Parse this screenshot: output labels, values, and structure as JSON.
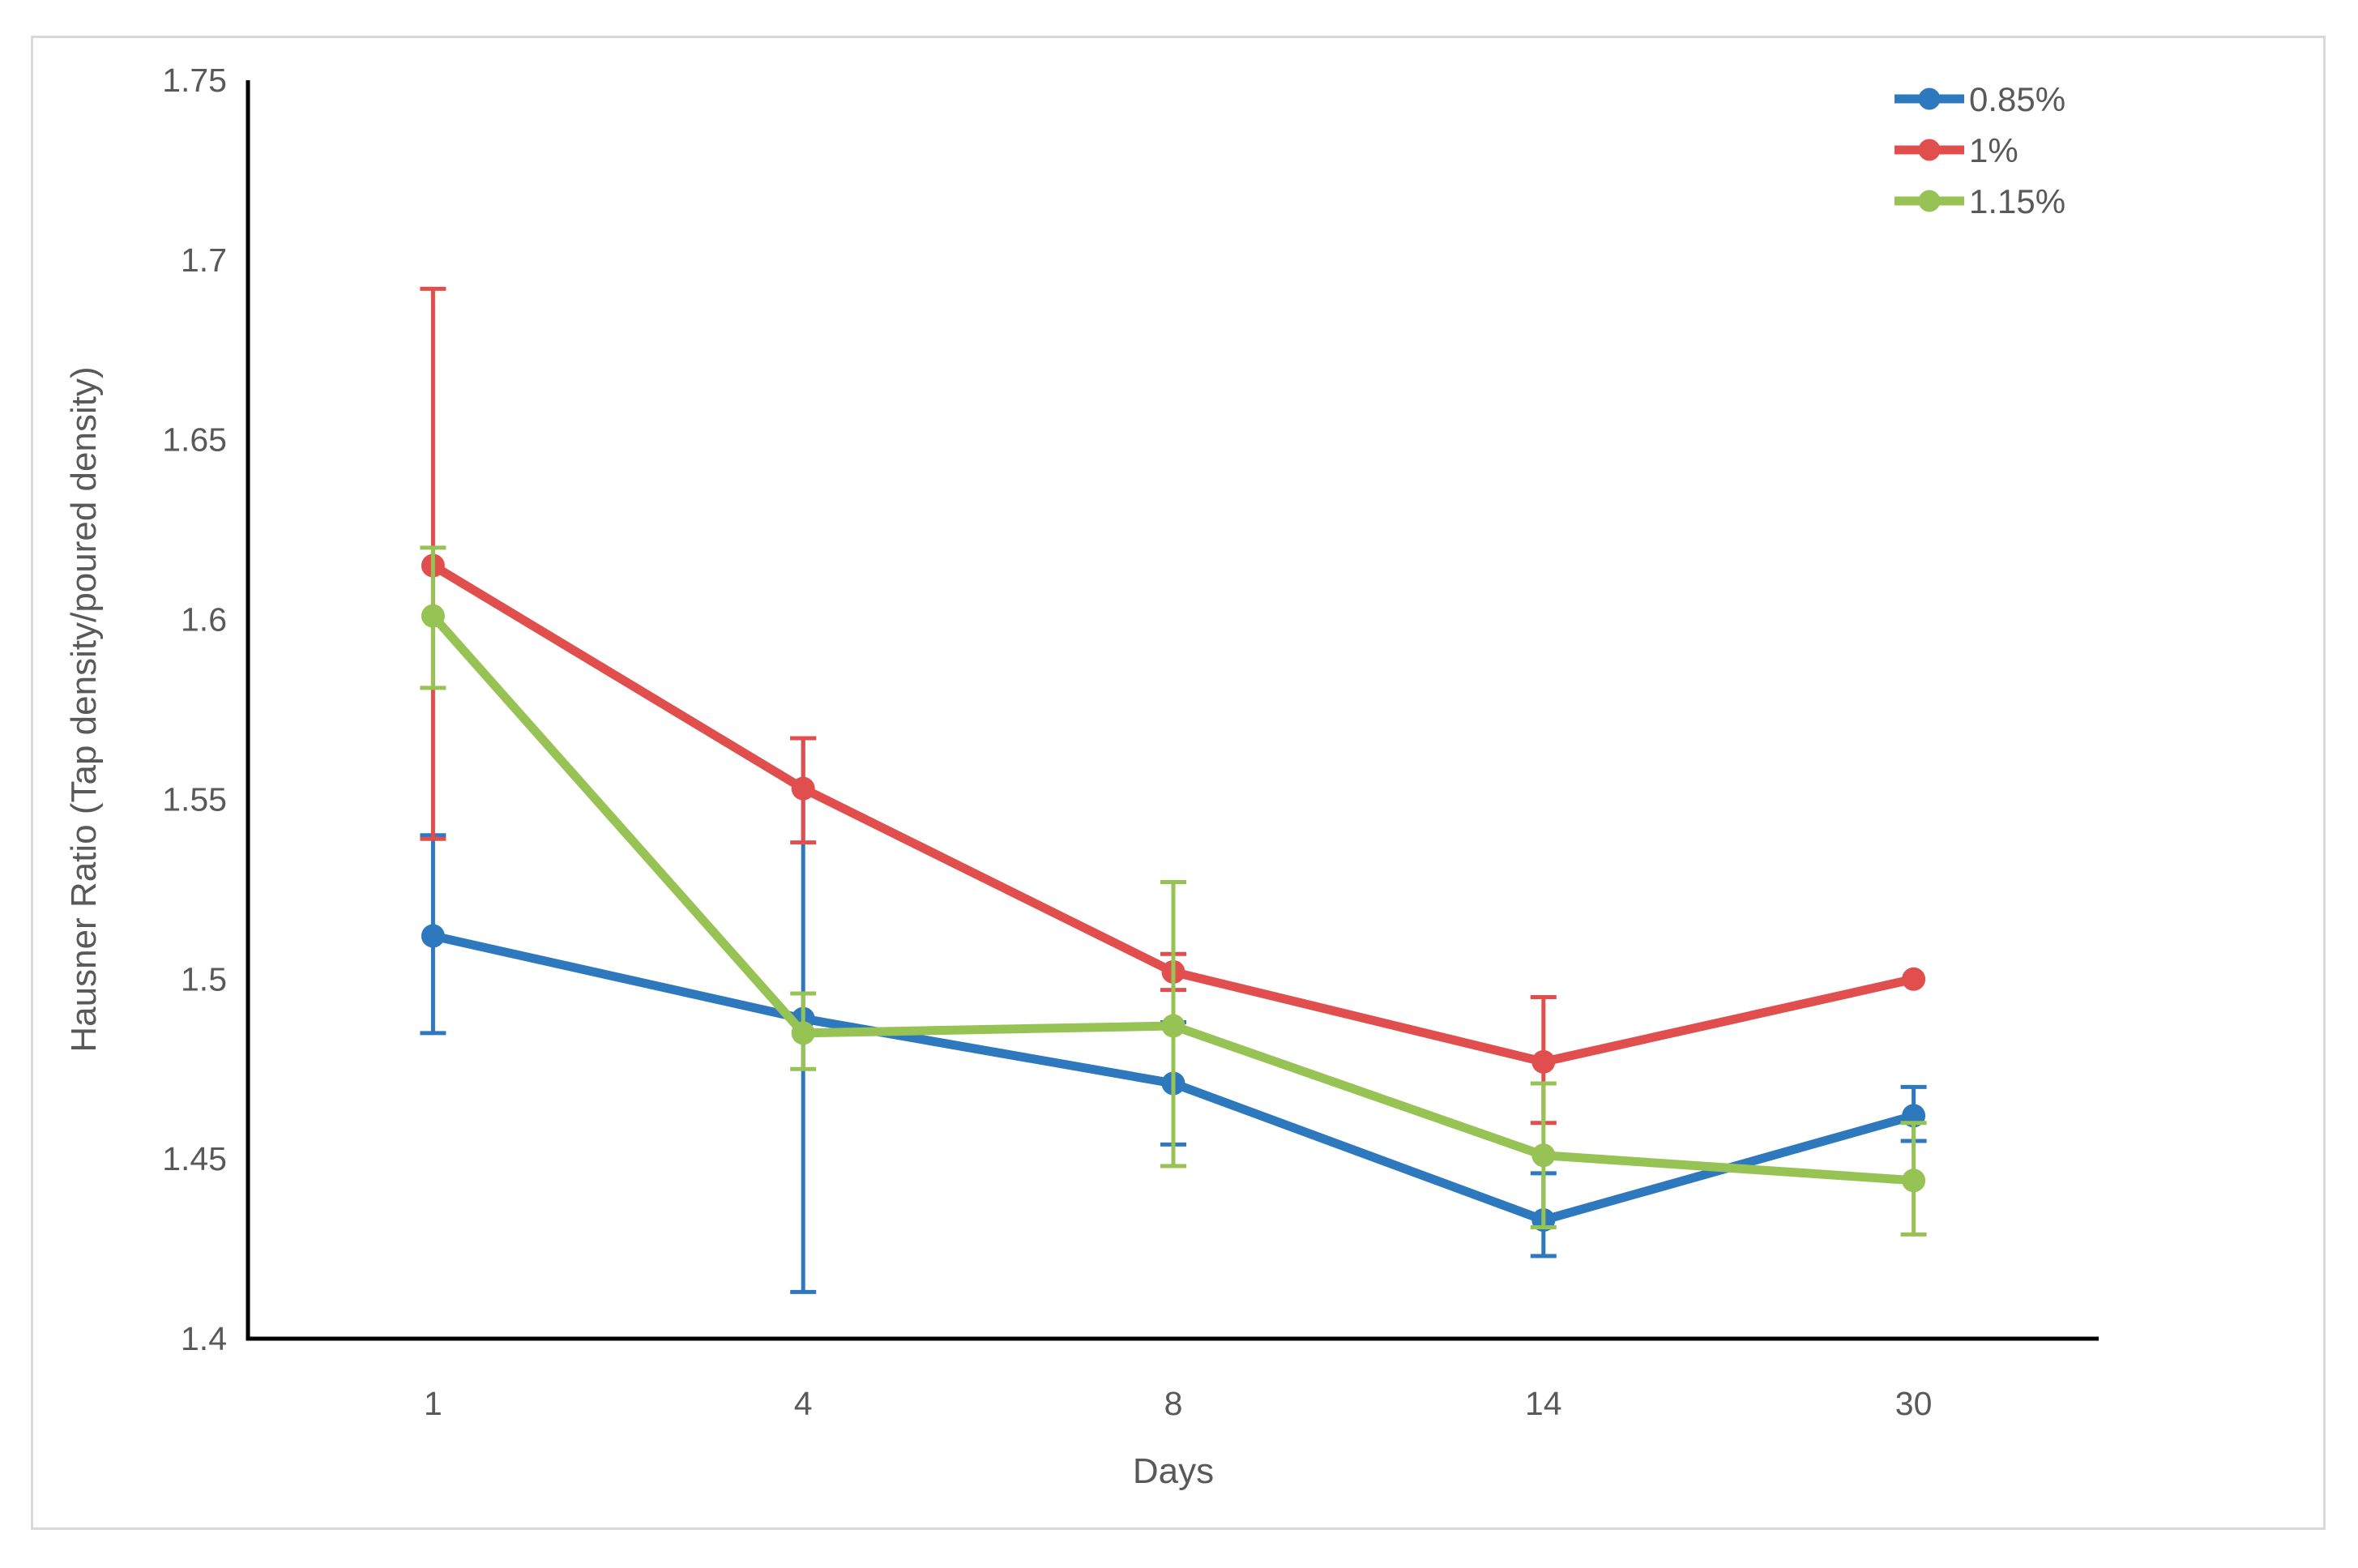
{
  "page": {
    "background_color": "#FFFFFF",
    "card_border_color": "#D9D9D9"
  },
  "chart_data": {
    "type": "line",
    "title": "",
    "xlabel": "Days",
    "ylabel": "Hausner Ratio (Tap density/poured density)",
    "categories": [
      "1",
      "4",
      "8",
      "14",
      "30"
    ],
    "ylim": [
      1.4,
      1.75
    ],
    "ytick_step": 0.05,
    "ytick_labels": [
      "1.4",
      "1.45",
      "1.5",
      "1.55",
      "1.6",
      "1.65",
      "1.7",
      "1.75"
    ],
    "grid": false,
    "legend_position": "top-right",
    "axis_color": "#000000",
    "text_color": "#595959",
    "error_bars": true,
    "series": [
      {
        "name": "0.85%",
        "color": "#2E79BD",
        "values": [
          1.512,
          1.489,
          1.471,
          1.433,
          1.462
        ],
        "error_low": [
          1.485,
          1.413,
          1.454,
          1.423,
          1.455
        ],
        "error_high": [
          1.54,
          1.567,
          1.488,
          1.446,
          1.47
        ]
      },
      {
        "name": "1%",
        "color": "#E04F4D",
        "values": [
          1.615,
          1.553,
          1.502,
          1.477,
          1.5
        ],
        "error_low": [
          1.539,
          1.538,
          1.497,
          1.46,
          1.5
        ],
        "error_high": [
          1.692,
          1.567,
          1.507,
          1.495,
          1.5
        ]
      },
      {
        "name": "1.15%",
        "color": "#97C355",
        "values": [
          1.601,
          1.485,
          1.487,
          1.451,
          1.444
        ],
        "error_low": [
          1.581,
          1.475,
          1.448,
          1.431,
          1.429
        ],
        "error_high": [
          1.62,
          1.496,
          1.527,
          1.471,
          1.46
        ]
      }
    ]
  }
}
